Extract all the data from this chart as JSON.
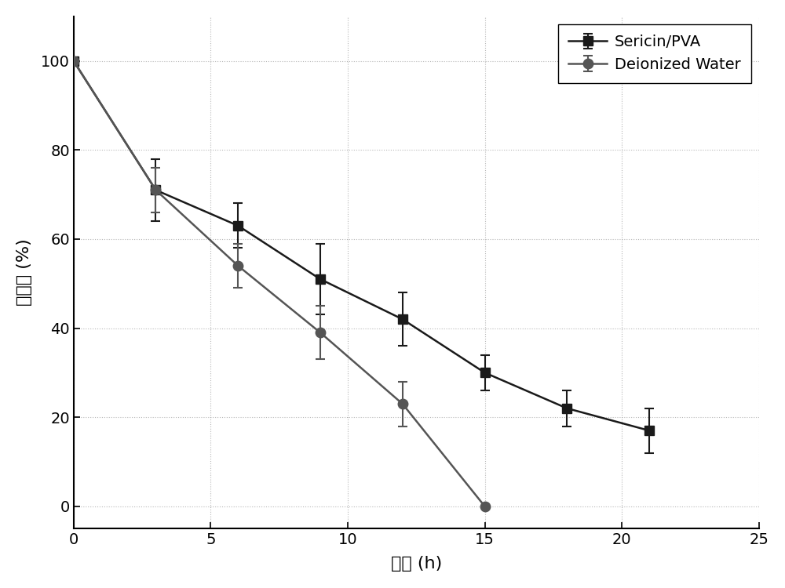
{
  "sericin_pva": {
    "x": [
      0,
      3,
      6,
      9,
      12,
      15,
      18,
      21
    ],
    "y": [
      100,
      71,
      63,
      51,
      42,
      30,
      22,
      17
    ],
    "yerr": [
      0,
      7,
      5,
      8,
      6,
      4,
      4,
      5
    ],
    "color": "#1a1a1a",
    "marker": "s",
    "label": "Sericin/PVA"
  },
  "deionized_water": {
    "x": [
      0,
      3,
      6,
      9,
      12,
      15
    ],
    "y": [
      100,
      71,
      54,
      39,
      23,
      0
    ],
    "yerr": [
      0,
      5,
      5,
      6,
      5,
      0
    ],
    "color": "#555555",
    "marker": "o",
    "label": "Deionized Water"
  },
  "xlabel": "时间 (h)",
  "ylabel": "保水率 (%)",
  "xlim": [
    0,
    25
  ],
  "ylim": [
    -5,
    110
  ],
  "xticks": [
    0,
    5,
    10,
    15,
    20,
    25
  ],
  "yticks": [
    0,
    20,
    40,
    60,
    80,
    100
  ],
  "background_color": "#ffffff",
  "linewidth": 1.8,
  "markersize": 9,
  "capsize": 4,
  "legend_fontsize": 14,
  "axis_label_fontsize": 16,
  "tick_fontsize": 14,
  "figsize": [
    10.0,
    7.5
  ],
  "dpi": 100
}
